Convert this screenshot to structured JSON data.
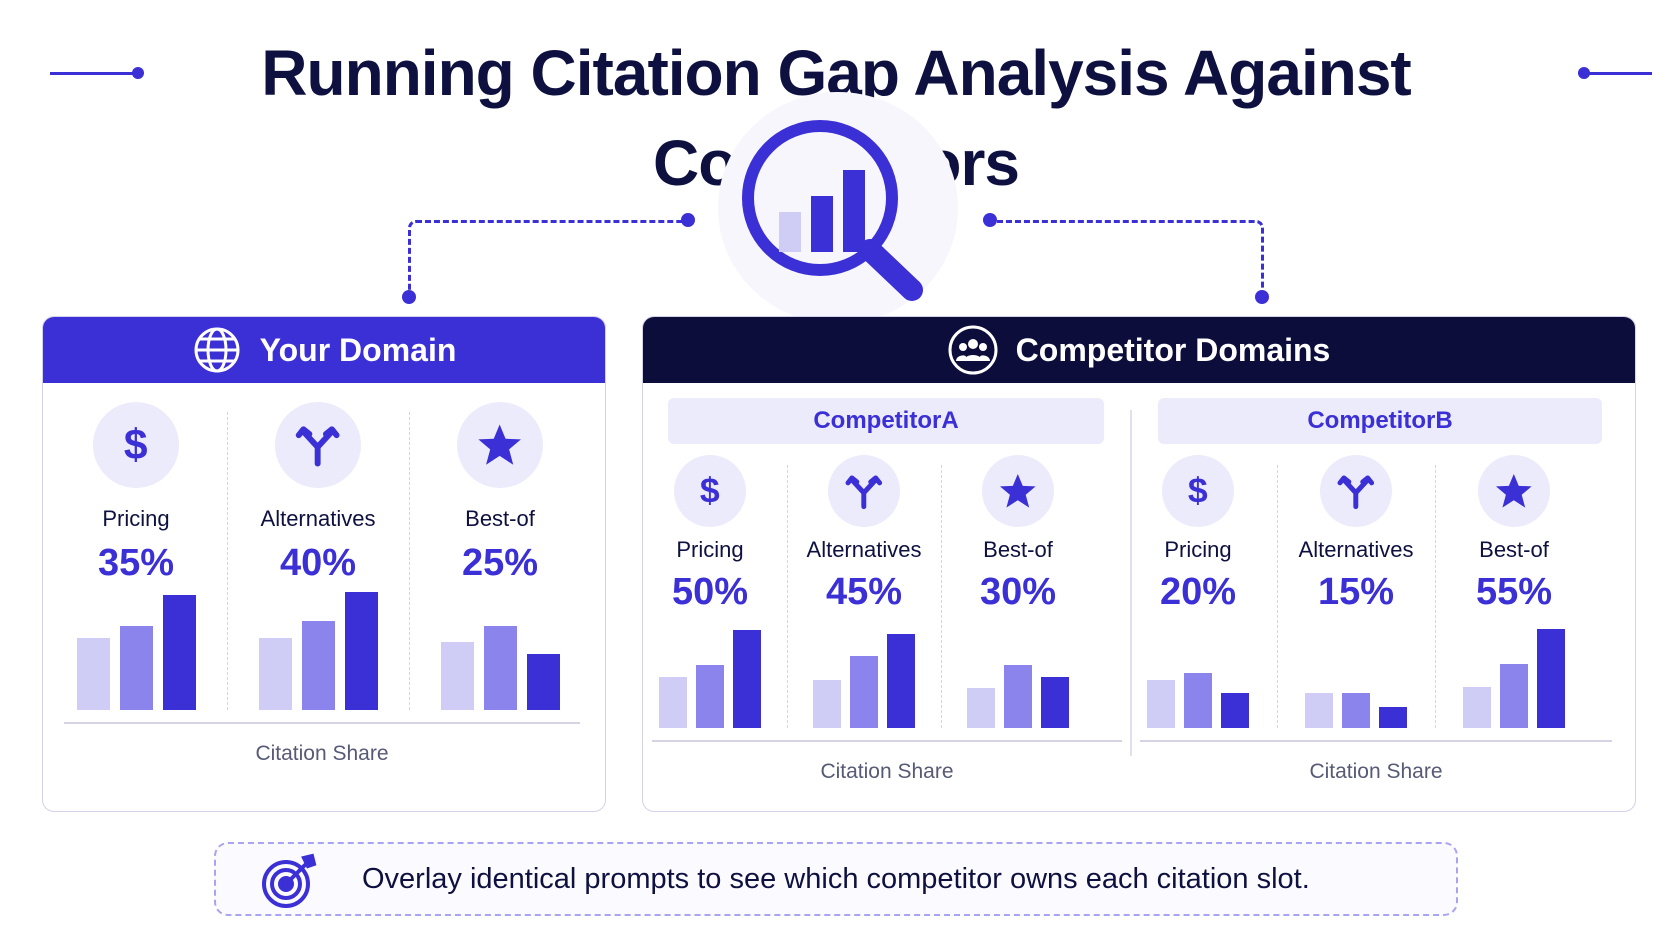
{
  "title": "Running Citation Gap Analysis Against Competitors",
  "colors": {
    "accent": "#3b2fd6",
    "mid": "#8a84ec",
    "light": "#cfccf6",
    "dark_header": "#0c0d3a"
  },
  "your_domain": {
    "header": "Your Domain",
    "icon": "globe-icon",
    "metrics": [
      {
        "icon": "dollar-icon",
        "label": "Pricing",
        "value": "35%",
        "bars": [
          0.6,
          0.7,
          0.96
        ]
      },
      {
        "icon": "fork-icon",
        "label": "Alternatives",
        "value": "40%",
        "bars": [
          0.6,
          0.74,
          0.98
        ]
      },
      {
        "icon": "star-icon",
        "label": "Best-of",
        "value": "25%",
        "bars": [
          0.57,
          0.7,
          0.47
        ]
      }
    ],
    "axis_label": "Citation Share"
  },
  "competitors": {
    "header": "Competitor Domains",
    "icon": "users-icon",
    "groups": [
      {
        "name": "CompetitorA",
        "metrics": [
          {
            "icon": "dollar-icon",
            "label": "Pricing",
            "value": "50%",
            "bars": [
              0.46,
              0.57,
              0.89
            ]
          },
          {
            "icon": "fork-icon",
            "label": "Alternatives",
            "value": "45%",
            "bars": [
              0.44,
              0.65,
              0.85
            ]
          },
          {
            "icon": "star-icon",
            "label": "Best-of",
            "value": "30%",
            "bars": [
              0.36,
              0.57,
              0.46
            ]
          }
        ],
        "axis_label": "Citation Share"
      },
      {
        "name": "CompetitorB",
        "metrics": [
          {
            "icon": "dollar-icon",
            "label": "Pricing",
            "value": "20%",
            "bars": [
              0.44,
              0.5,
              0.32
            ]
          },
          {
            "icon": "fork-icon",
            "label": "Alternatives",
            "value": "15%",
            "bars": [
              0.32,
              0.32,
              0.19
            ]
          },
          {
            "icon": "star-icon",
            "label": "Best-of",
            "value": "55%",
            "bars": [
              0.37,
              0.58,
              0.9
            ]
          }
        ],
        "axis_label": "Citation Share"
      }
    ]
  },
  "footer": {
    "icon": "target-icon",
    "text": "Overlay identical prompts to see which competitor owns each citation slot."
  }
}
